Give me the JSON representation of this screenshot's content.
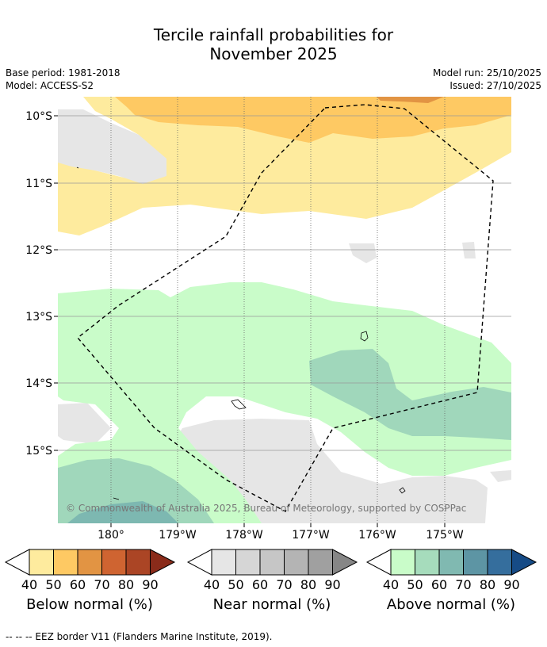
{
  "title": {
    "line1": "Tercile rainfall probabilities for",
    "line2": "November 2025"
  },
  "meta": {
    "base_period": "Base period: 1981-2018",
    "model": "Model: ACCESS-S2",
    "model_run": "Model run: 25/10/2025",
    "issued": "Issued: 27/10/2025"
  },
  "map": {
    "lat_labels": [
      "10°S",
      "11°S",
      "12°S",
      "13°S",
      "14°S",
      "15°S"
    ],
    "lon_labels": [
      "180°",
      "179°W",
      "178°W",
      "177°W",
      "176°W",
      "175°W"
    ],
    "copyright": "© Commonwealth of Australia 2025, Bureau of Meteorology, supported by COSPPac",
    "colors": {
      "below_40": "#feeb9e",
      "below_50": "#fec963",
      "below_60": "#e29443",
      "near_40": "#e6e6e6",
      "above_40": "#c9fcc9",
      "above_50": "#a0d7bb",
      "above_60": "#7db8b1",
      "above_70": "#5d95a4"
    }
  },
  "colorbars": [
    {
      "ticks": [
        "40",
        "50",
        "60",
        "70",
        "80",
        "90"
      ],
      "label": "Below normal (%)",
      "colors": [
        "#feeb9e",
        "#fec963",
        "#e29443",
        "#cf6431",
        "#ab4525",
        "#8a2b1a"
      ]
    },
    {
      "ticks": [
        "40",
        "50",
        "60",
        "70",
        "80",
        "90"
      ],
      "label": "Near normal (%)",
      "colors": [
        "#e6e6e6",
        "#d6d6d6",
        "#c6c6c6",
        "#b4b4b4",
        "#a0a0a0",
        "#868686"
      ]
    },
    {
      "ticks": [
        "40",
        "50",
        "60",
        "70",
        "80",
        "90"
      ],
      "label": "Above normal (%)",
      "colors": [
        "#c9fcc9",
        "#a6dcbc",
        "#80b9b1",
        "#5d95a4",
        "#356e9d",
        "#164b86"
      ]
    }
  ],
  "footer": "--  --  -- EEZ border V11 (Flanders Marine Institute, 2019)."
}
